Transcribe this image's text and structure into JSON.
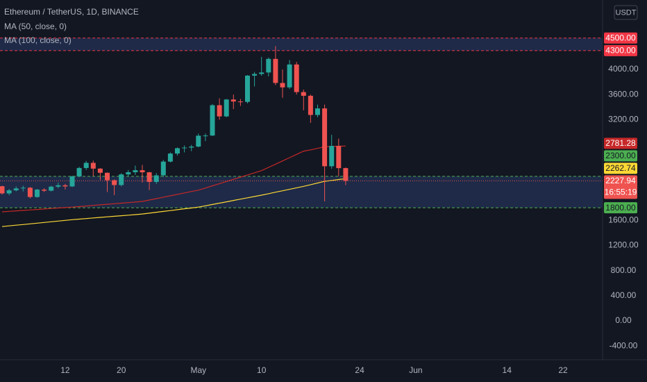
{
  "chart_data": {
    "type": "candlestick",
    "title": "Ethereum / TetherUS, 1D, BINANCE",
    "currency": "USDT",
    "countdown": "16:55:19",
    "categories": [
      null,
      null,
      null,
      null,
      null,
      null,
      null,
      null,
      null,
      "12",
      null,
      null,
      null,
      null,
      null,
      null,
      null,
      "20",
      null,
      null,
      null,
      null,
      null,
      null,
      null,
      null,
      null,
      null,
      "May",
      null,
      null,
      null,
      null,
      null,
      null,
      null,
      null,
      "10",
      null,
      null,
      null,
      null,
      null,
      null,
      null,
      null,
      null,
      null,
      null,
      null,
      null,
      "24",
      null,
      null,
      null,
      null,
      null,
      null,
      null,
      "Jun",
      null,
      null,
      null,
      null,
      null,
      null,
      null,
      null,
      null,
      null,
      null,
      null,
      "14",
      null,
      null,
      null,
      null,
      null,
      null,
      null,
      "22",
      null,
      null,
      null,
      null,
      null
    ],
    "up_color": "#26a69a",
    "down_color": "#ef5350",
    "open": [
      2142,
      2028,
      2077,
      2107,
      2118,
      1971,
      2088,
      2071,
      2135,
      2157,
      2139,
      2299,
      2432,
      2514,
      2422,
      2356,
      2237,
      2161,
      2330,
      2365,
      2397,
      2364,
      2211,
      2315,
      2534,
      2662,
      2747,
      2757,
      2773,
      2946,
      2949,
      3431,
      3253,
      3522,
      3490,
      3484,
      3902,
      3928,
      3952,
      4168,
      3785,
      3715,
      4079,
      3640,
      3581,
      3276,
      3380,
      2460,
      2784,
      2430,
      null,
      null,
      null,
      null,
      null,
      null,
      null,
      null,
      null,
      null,
      null,
      null,
      null,
      null,
      null,
      null,
      null,
      null,
      null,
      null,
      null,
      null,
      null,
      null,
      null,
      null,
      null,
      null,
      null,
      null,
      null,
      null,
      null,
      null,
      null,
      null
    ],
    "high": [
      2150,
      2100,
      2140,
      2150,
      2130,
      2100,
      2110,
      2150,
      2200,
      2180,
      2310,
      2450,
      2545,
      2550,
      2430,
      2360,
      2250,
      2350,
      2400,
      2470,
      2480,
      2370,
      2350,
      2560,
      2680,
      2760,
      2790,
      2800,
      2980,
      2980,
      3450,
      3540,
      3530,
      3600,
      3530,
      3910,
      3960,
      4200,
      4190,
      4372,
      4000,
      4150,
      4120,
      3680,
      3600,
      3440,
      3440,
      2960,
      2900,
      2440,
      null,
      null,
      null,
      null,
      null,
      null,
      null,
      null,
      null,
      null,
      null,
      null,
      null,
      null,
      null,
      null,
      null,
      null,
      null,
      null,
      null,
      null,
      null,
      null,
      null,
      null,
      null,
      null,
      null,
      null,
      null,
      null,
      null,
      null,
      null,
      null
    ],
    "low": [
      2010,
      2000,
      2060,
      2060,
      1950,
      1960,
      2050,
      2060,
      2110,
      2090,
      2130,
      2290,
      2400,
      2300,
      2240,
      2050,
      2000,
      2140,
      2300,
      2320,
      2200,
      2080,
      2180,
      2290,
      2520,
      2630,
      2680,
      2700,
      2760,
      2860,
      2940,
      3200,
      3240,
      3370,
      3420,
      3460,
      3730,
      3900,
      3890,
      3750,
      3550,
      3690,
      3600,
      3350,
      3150,
      3240,
      1900,
      2420,
      2300,
      2160,
      null,
      null,
      null,
      null,
      null,
      null,
      null,
      null,
      null,
      null,
      null,
      null,
      null,
      null,
      null,
      null,
      null,
      null,
      null,
      null,
      null,
      null,
      null,
      null,
      null,
      null,
      null,
      null,
      null,
      null,
      null,
      null,
      null,
      null,
      null,
      null
    ],
    "close": [
      2028,
      2077,
      2107,
      2118,
      1971,
      2088,
      2071,
      2135,
      2157,
      2139,
      2299,
      2432,
      2514,
      2422,
      2356,
      2237,
      2161,
      2330,
      2365,
      2397,
      2364,
      2211,
      2315,
      2534,
      2662,
      2747,
      2757,
      2773,
      2946,
      2949,
      3431,
      3253,
      3522,
      3490,
      3484,
      3902,
      3928,
      3952,
      4168,
      3785,
      3715,
      4079,
      3640,
      3581,
      3276,
      3380,
      2460,
      2784,
      2430,
      2227.94,
      null,
      null,
      null,
      null,
      null,
      null,
      null,
      null,
      null,
      null,
      null,
      null,
      null,
      null,
      null,
      null,
      null,
      null,
      null,
      null,
      null,
      null,
      null,
      null,
      null,
      null,
      null,
      null,
      null,
      null,
      null,
      null,
      null,
      null,
      null,
      null
    ],
    "series": [
      {
        "name": "MA (50, close, 0)",
        "color": "#c62828",
        "values": [
          1735,
          1742,
          1750,
          1758,
          1765,
          1772,
          1780,
          1788,
          1795,
          1802,
          1810,
          1819,
          1828,
          1837,
          1846,
          1855,
          1864,
          1873,
          1882,
          1891,
          1900,
          1922,
          1945,
          1968,
          1990,
          2012,
          2035,
          2058,
          2080,
          2114,
          2149,
          2183,
          2218,
          2252,
          2287,
          2321,
          2356,
          2390,
          2442,
          2493,
          2545,
          2597,
          2648,
          2700,
          2720,
          2745,
          2770,
          2775,
          2779,
          2781.28,
          null,
          null,
          null,
          null,
          null,
          null,
          null,
          null,
          null,
          null,
          null,
          null,
          null,
          null,
          null,
          null,
          null,
          null,
          null,
          null,
          null,
          null,
          null,
          null,
          null,
          null,
          null,
          null,
          null,
          null,
          null,
          null,
          null,
          null,
          null,
          null
        ]
      },
      {
        "name": "MA (100, close, 0)",
        "color": "#fdd835",
        "values": [
          1500,
          1511,
          1522,
          1533,
          1544,
          1555,
          1566,
          1577,
          1588,
          1599,
          1610,
          1619,
          1628,
          1637,
          1646,
          1655,
          1664,
          1673,
          1682,
          1691,
          1700,
          1714,
          1728,
          1741,
          1755,
          1769,
          1783,
          1796,
          1810,
          1831,
          1852,
          1873,
          1894,
          1916,
          1937,
          1958,
          1979,
          2000,
          2023,
          2047,
          2070,
          2093,
          2117,
          2140,
          2167,
          2193,
          2220,
          2234,
          2248,
          2262.74,
          null,
          null,
          null,
          null,
          null,
          null,
          null,
          null,
          null,
          null,
          null,
          null,
          null,
          null,
          null,
          null,
          null,
          null,
          null,
          null,
          null,
          null,
          null,
          null,
          null,
          null,
          null,
          null,
          null,
          null,
          null,
          null,
          null,
          null,
          null,
          null
        ]
      }
    ],
    "zones": [
      {
        "color": "#f23645",
        "fill": "#1e2a48",
        "top": {
          "value": 4500,
          "label": "4500.00"
        },
        "bottom": {
          "value": 4300,
          "label": "4300.00"
        }
      },
      {
        "color": "#4caf50",
        "fill": "#1e2a48",
        "top": {
          "value": 2300,
          "label": "2300.00"
        },
        "bottom": {
          "value": 1800,
          "label": "1800.00"
        }
      }
    ],
    "ylim": [
      -619,
      5105
    ],
    "yticks": [
      {
        "value": -400,
        "label": "-400.00"
      },
      {
        "value": 0,
        "label": "0.00"
      },
      {
        "value": 400,
        "label": "400.00"
      },
      {
        "value": 800,
        "label": "800.00"
      },
      {
        "value": 1200,
        "label": "1200.00"
      },
      {
        "value": 1600,
        "label": "1600.00"
      },
      {
        "value": 3200,
        "label": "3200.00"
      },
      {
        "value": 3600,
        "label": "3600.00"
      },
      {
        "value": 4000,
        "label": "4000.00"
      }
    ]
  }
}
